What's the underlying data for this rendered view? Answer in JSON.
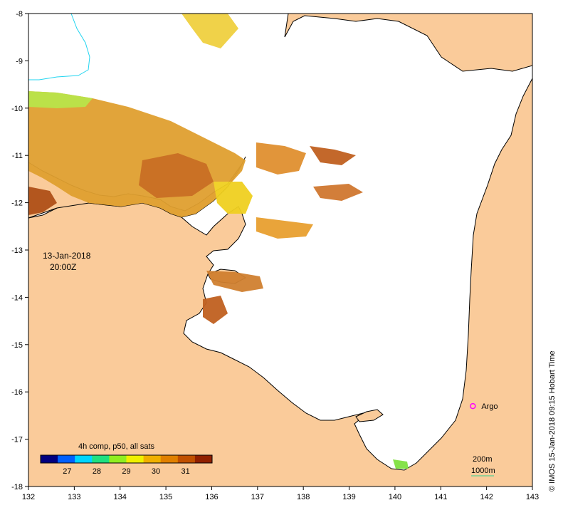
{
  "map": {
    "type": "sst-map",
    "region": "Gulf of Carpentaria",
    "lon_range": [
      132,
      143
    ],
    "lat_range": [
      -18,
      -8
    ],
    "x_ticks": [
      "132",
      "133",
      "134",
      "135",
      "136",
      "137",
      "138",
      "139",
      "140",
      "141",
      "142",
      "143"
    ],
    "y_ticks": [
      "-8",
      "-9",
      "-10",
      "-11",
      "-12",
      "-13",
      "-14",
      "-15",
      "-16",
      "-17",
      "-18"
    ],
    "land_color": "#FACB9A",
    "coast_color": "#000000",
    "no_data_color": "#FFFFFF",
    "river_color": "#22D5F0"
  },
  "date_label": {
    "date": "13-Jan-2018",
    "time": "20:00Z"
  },
  "colorbar": {
    "title": "4h comp, p50, all sats",
    "tick_labels": [
      "27",
      "28",
      "29",
      "30",
      "31"
    ],
    "range_c": [
      26.1,
      31.9
    ],
    "colors": [
      "#000080",
      "#0060FF",
      "#00D5FF",
      "#20E080",
      "#90EE20",
      "#F0F000",
      "#F0B000",
      "#E08000",
      "#C05000",
      "#902000"
    ]
  },
  "argo": {
    "label": "Argo",
    "lon": 141.7,
    "lat": -16.3,
    "color": "#FF00FF"
  },
  "bathymetry_legend": {
    "line1": "200m",
    "line2": "1000m",
    "color": "#30D090"
  },
  "credit": "© IMOS 15-Jan-2018 09:15 Hobart Time"
}
